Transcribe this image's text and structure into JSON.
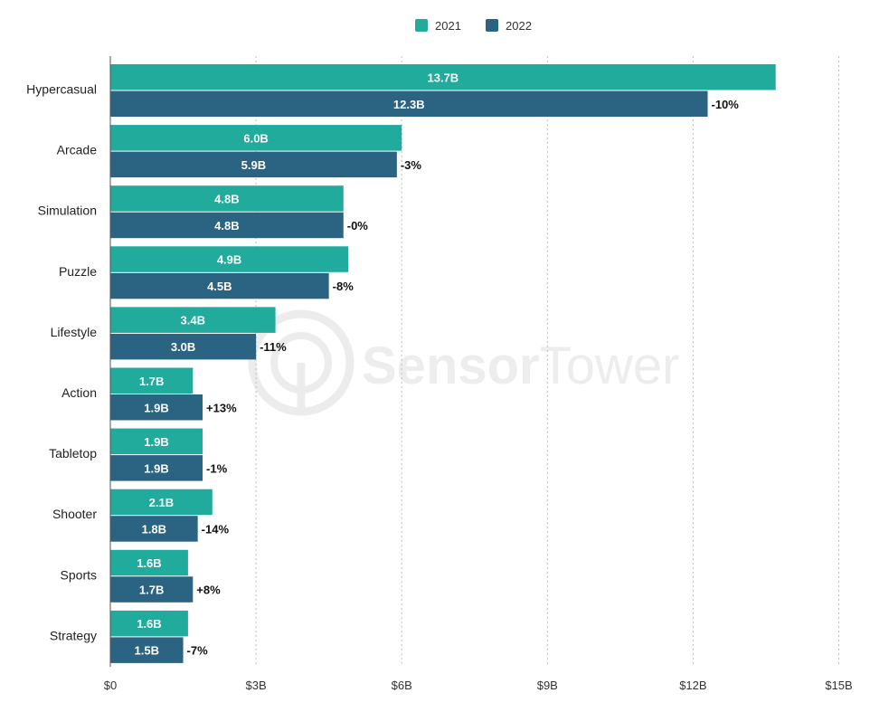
{
  "watermark": {
    "brand_bold": "Sensor",
    "brand_light": "Tower"
  },
  "colors": {
    "series_2021": "#20ab9c",
    "series_2022": "#2b6482",
    "axis": "#555555",
    "grid": "#bdbdbd"
  },
  "chart_data": {
    "type": "bar",
    "orientation": "horizontal",
    "categories": [
      "Hypercasual",
      "Arcade",
      "Simulation",
      "Puzzle",
      "Lifestyle",
      "Action",
      "Tabletop",
      "Shooter",
      "Sports",
      "Strategy"
    ],
    "series": [
      {
        "name": "2021",
        "values": [
          13.7,
          6.0,
          4.8,
          4.9,
          3.4,
          1.7,
          1.9,
          2.1,
          1.6,
          1.6
        ],
        "labels": [
          "13.7B",
          "6.0B",
          "4.8B",
          "4.9B",
          "3.4B",
          "1.7B",
          "1.9B",
          "2.1B",
          "1.6B",
          "1.6B"
        ]
      },
      {
        "name": "2022",
        "values": [
          12.3,
          5.9,
          4.8,
          4.5,
          3.0,
          1.9,
          1.9,
          1.8,
          1.7,
          1.5
        ],
        "labels": [
          "12.3B",
          "5.9B",
          "4.8B",
          "4.5B",
          "3.0B",
          "1.9B",
          "1.9B",
          "1.8B",
          "1.7B",
          "1.5B"
        ]
      }
    ],
    "change_labels": [
      "-10%",
      "-3%",
      "-0%",
      "-8%",
      "-11%",
      "+13%",
      "-1%",
      "-14%",
      "+8%",
      "-7%"
    ],
    "xlim": [
      0,
      15
    ],
    "x_ticks": [
      0,
      3,
      6,
      9,
      12,
      15
    ],
    "x_tick_labels": [
      "$0",
      "$3B",
      "$6B",
      "$9B",
      "$12B",
      "$15B"
    ],
    "grid": true,
    "legend_position": "top-center"
  }
}
